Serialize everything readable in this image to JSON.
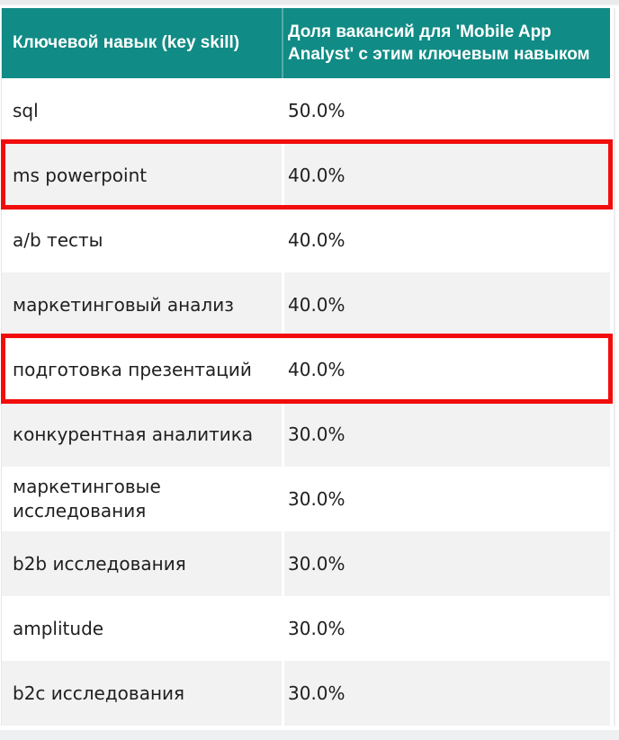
{
  "chart_data": {
    "type": "table",
    "columns": [
      "Ключевой навык (key skill)",
      "Доля вакансий для 'Mobile App Analyst' с этим ключевым навыком"
    ],
    "rows": [
      [
        "sql",
        "50.0%"
      ],
      [
        "ms powerpoint",
        "40.0%"
      ],
      [
        "a/b тесты",
        "40.0%"
      ],
      [
        "маркетинговый анализ",
        "40.0%"
      ],
      [
        "подготовка презентаций",
        "40.0%"
      ],
      [
        "конкурентная аналитика",
        "30.0%"
      ],
      [
        "маркетинговые исследования",
        "30.0%"
      ],
      [
        "b2b исследования",
        "30.0%"
      ],
      [
        "amplitude",
        "30.0%"
      ],
      [
        "b2c исследования",
        "30.0%"
      ]
    ],
    "highlighted_skills": [
      "ms powerpoint",
      "подготовка презентаций"
    ],
    "layout": "two-column striped table, red annotation boxes around highlighted rows"
  },
  "table": {
    "header": {
      "skill_label": "Ключевой навык (key skill)",
      "share_label": "Доля вакансий для 'Mobile App Analyst' с этим ключевым навыком"
    },
    "rows": [
      {
        "skill": "sql",
        "share": "50.0%",
        "highlighted": false
      },
      {
        "skill": "ms powerpoint",
        "share": "40.0%",
        "highlighted": true
      },
      {
        "skill": "a/b тесты",
        "share": "40.0%",
        "highlighted": false
      },
      {
        "skill": "маркетинговый анализ",
        "share": "40.0%",
        "highlighted": false
      },
      {
        "skill": "подготовка презентаций",
        "share": "40.0%",
        "highlighted": true
      },
      {
        "skill": "конкурентная аналитика",
        "share": "30.0%",
        "highlighted": false
      },
      {
        "skill": "маркетинговые исследования",
        "share": "30.0%",
        "highlighted": false
      },
      {
        "skill": "b2b исследования",
        "share": "30.0%",
        "highlighted": false
      },
      {
        "skill": "amplitude",
        "share": "30.0%",
        "highlighted": false
      },
      {
        "skill": "b2c исследования",
        "share": "30.0%",
        "highlighted": false
      }
    ]
  },
  "colors": {
    "header_bg": "#118b85",
    "header_text": "#ffffff",
    "zebra_bg": "#f2f2f2",
    "body_text": "#202020",
    "highlight_border": "#f20d0d"
  }
}
